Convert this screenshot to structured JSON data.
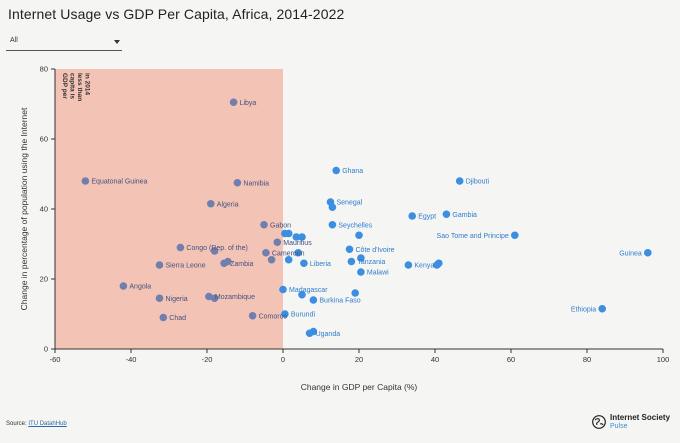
{
  "title": "Internet Usage vs GDP Per Capita, Africa, 2014-2022",
  "filter": {
    "selected": "All"
  },
  "source": {
    "prefix": "Source:",
    "link_text": "ITU DatahHub"
  },
  "brand": {
    "name": "Internet Society",
    "sub": "Pulse"
  },
  "colors": {
    "region": "#f3c4b6",
    "point_low": "#6f7fae",
    "point_high": "#3b8ee0",
    "text_low": "#44507e",
    "text_high": "#2f7dcc"
  },
  "chart_data": {
    "type": "scatter",
    "xlabel": "Change in GDP per Capita (%)",
    "ylabel": "Change in percentage of population using the Internet",
    "xlim": [
      -60,
      100
    ],
    "ylim": [
      0,
      80
    ],
    "xticks": [
      -60,
      -40,
      -20,
      0,
      20,
      40,
      60,
      80,
      100
    ],
    "yticks": [
      0,
      20,
      40,
      60,
      80
    ],
    "grid": false,
    "shaded_region": {
      "x_from": -60,
      "x_to": 0,
      "label": [
        "GDP per",
        "capita is",
        "less than",
        "in 2014"
      ]
    },
    "points": [
      {
        "x": -13,
        "y": 70.5,
        "label": "Libya"
      },
      {
        "x": -52,
        "y": 48,
        "label": "Equatonal Guinea"
      },
      {
        "x": -12,
        "y": 47.5,
        "label": "Namibia"
      },
      {
        "x": -19,
        "y": 41.5,
        "label": "Algeria"
      },
      {
        "x": -5,
        "y": 35.5,
        "label": "Gabon"
      },
      {
        "x": 0.5,
        "y": 33,
        "label": ""
      },
      {
        "x": 1.5,
        "y": 33,
        "label": ""
      },
      {
        "x": 3.5,
        "y": 32,
        "label": ""
      },
      {
        "x": 5,
        "y": 32,
        "label": ""
      },
      {
        "x": -1.5,
        "y": 30.5,
        "label": "Mauritius"
      },
      {
        "x": -27,
        "y": 29,
        "label": "Congo (Rep. of the)"
      },
      {
        "x": -18,
        "y": 28,
        "label": ""
      },
      {
        "x": -4.5,
        "y": 27.5,
        "label": "Cameroon"
      },
      {
        "x": 4,
        "y": 27.5,
        "label": ""
      },
      {
        "x": -3,
        "y": 25.5,
        "label": ""
      },
      {
        "x": 1.5,
        "y": 25.5,
        "label": ""
      },
      {
        "x": 5.5,
        "y": 24.5,
        "label": "Liberia"
      },
      {
        "x": -15.5,
        "y": 24.5,
        "label": "Zambia"
      },
      {
        "x": -14.5,
        "y": 25,
        "label": ""
      },
      {
        "x": -32.5,
        "y": 24,
        "label": "Sierra Leone"
      },
      {
        "x": -42,
        "y": 18,
        "label": "Angola"
      },
      {
        "x": -32.5,
        "y": 14.5,
        "label": "Nigeria"
      },
      {
        "x": -19.5,
        "y": 15,
        "label": "Mozambique"
      },
      {
        "x": -18,
        "y": 14.5,
        "label": ""
      },
      {
        "x": -31.5,
        "y": 9,
        "label": "Chad"
      },
      {
        "x": -8,
        "y": 9.5,
        "label": "Comoros"
      },
      {
        "x": 0,
        "y": 17,
        "label": "Madagascar"
      },
      {
        "x": 5,
        "y": 15.5,
        "label": ""
      },
      {
        "x": 8,
        "y": 14,
        "label": "Burkina Faso"
      },
      {
        "x": 19,
        "y": 16,
        "label": ""
      },
      {
        "x": 0.5,
        "y": 10,
        "label": "Burundi"
      },
      {
        "x": 7,
        "y": 4.5,
        "label": "Uganda"
      },
      {
        "x": 8,
        "y": 5,
        "label": ""
      },
      {
        "x": 14,
        "y": 51,
        "label": "Ghana"
      },
      {
        "x": 12.5,
        "y": 42,
        "label": "Senegal"
      },
      {
        "x": 13,
        "y": 40.5,
        "label": ""
      },
      {
        "x": 13,
        "y": 35.5,
        "label": "Seychelles"
      },
      {
        "x": 20,
        "y": 32.5,
        "label": ""
      },
      {
        "x": 17.5,
        "y": 28.5,
        "label": "Côte d'Ivoire"
      },
      {
        "x": 20.5,
        "y": 26,
        "label": ""
      },
      {
        "x": 18,
        "y": 25,
        "label": "Tanzania"
      },
      {
        "x": 20.5,
        "y": 22,
        "label": "Malawi"
      },
      {
        "x": 34,
        "y": 38,
        "label": "Egypt"
      },
      {
        "x": 43,
        "y": 38.5,
        "label": "Gambia"
      },
      {
        "x": 46.5,
        "y": 48,
        "label": "Djibouti"
      },
      {
        "x": 61,
        "y": 32.5,
        "label": "Sao Tome and Principe"
      },
      {
        "x": 33,
        "y": 24,
        "label": "Kenya"
      },
      {
        "x": 40.5,
        "y": 24,
        "label": ""
      },
      {
        "x": 41,
        "y": 24.5,
        "label": ""
      },
      {
        "x": 96,
        "y": 27.5,
        "label": "Guinea"
      },
      {
        "x": 84,
        "y": 11.5,
        "label": "Ethiopia"
      }
    ]
  }
}
